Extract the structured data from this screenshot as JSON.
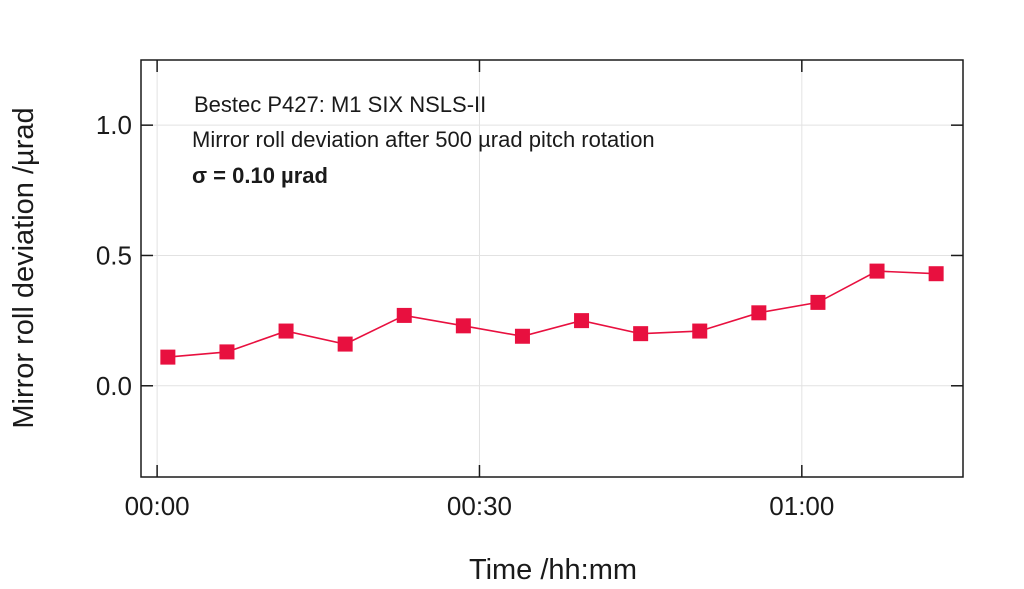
{
  "chart_data": {
    "type": "line",
    "title": "",
    "xlabel": "Time /hh:mm",
    "ylabel": "Mirror roll deviation /µrad",
    "xlim": [
      -1.5,
      75
    ],
    "ylim": [
      -0.35,
      1.25
    ],
    "xticks": [
      {
        "value": 0,
        "label": "00:00"
      },
      {
        "value": 30,
        "label": "00:30"
      },
      {
        "value": 60,
        "label": "01:00"
      }
    ],
    "yticks": [
      {
        "value": 0.0,
        "label": "0.0"
      },
      {
        "value": 0.5,
        "label": "0.5"
      },
      {
        "value": 1.0,
        "label": "1.0"
      }
    ],
    "grid": true,
    "legend": "none",
    "annotations": [
      {
        "text": "Bestec P427: M1 SIX NSLS-II",
        "bold": false
      },
      {
        "text": "Mirror roll deviation after 500 µrad pitch rotation",
        "bold": false
      },
      {
        "text": "σ = 0.10 µrad",
        "bold": true
      }
    ],
    "series": [
      {
        "color": "#e8103f",
        "marker": "square",
        "x": [
          1,
          6.5,
          12,
          17.5,
          23,
          28.5,
          34,
          39.5,
          45,
          50.5,
          56,
          61.5,
          67,
          72.5
        ],
        "y": [
          0.11,
          0.13,
          0.21,
          0.16,
          0.27,
          0.23,
          0.19,
          0.25,
          0.2,
          0.21,
          0.28,
          0.32,
          0.44,
          0.43
        ]
      }
    ]
  }
}
